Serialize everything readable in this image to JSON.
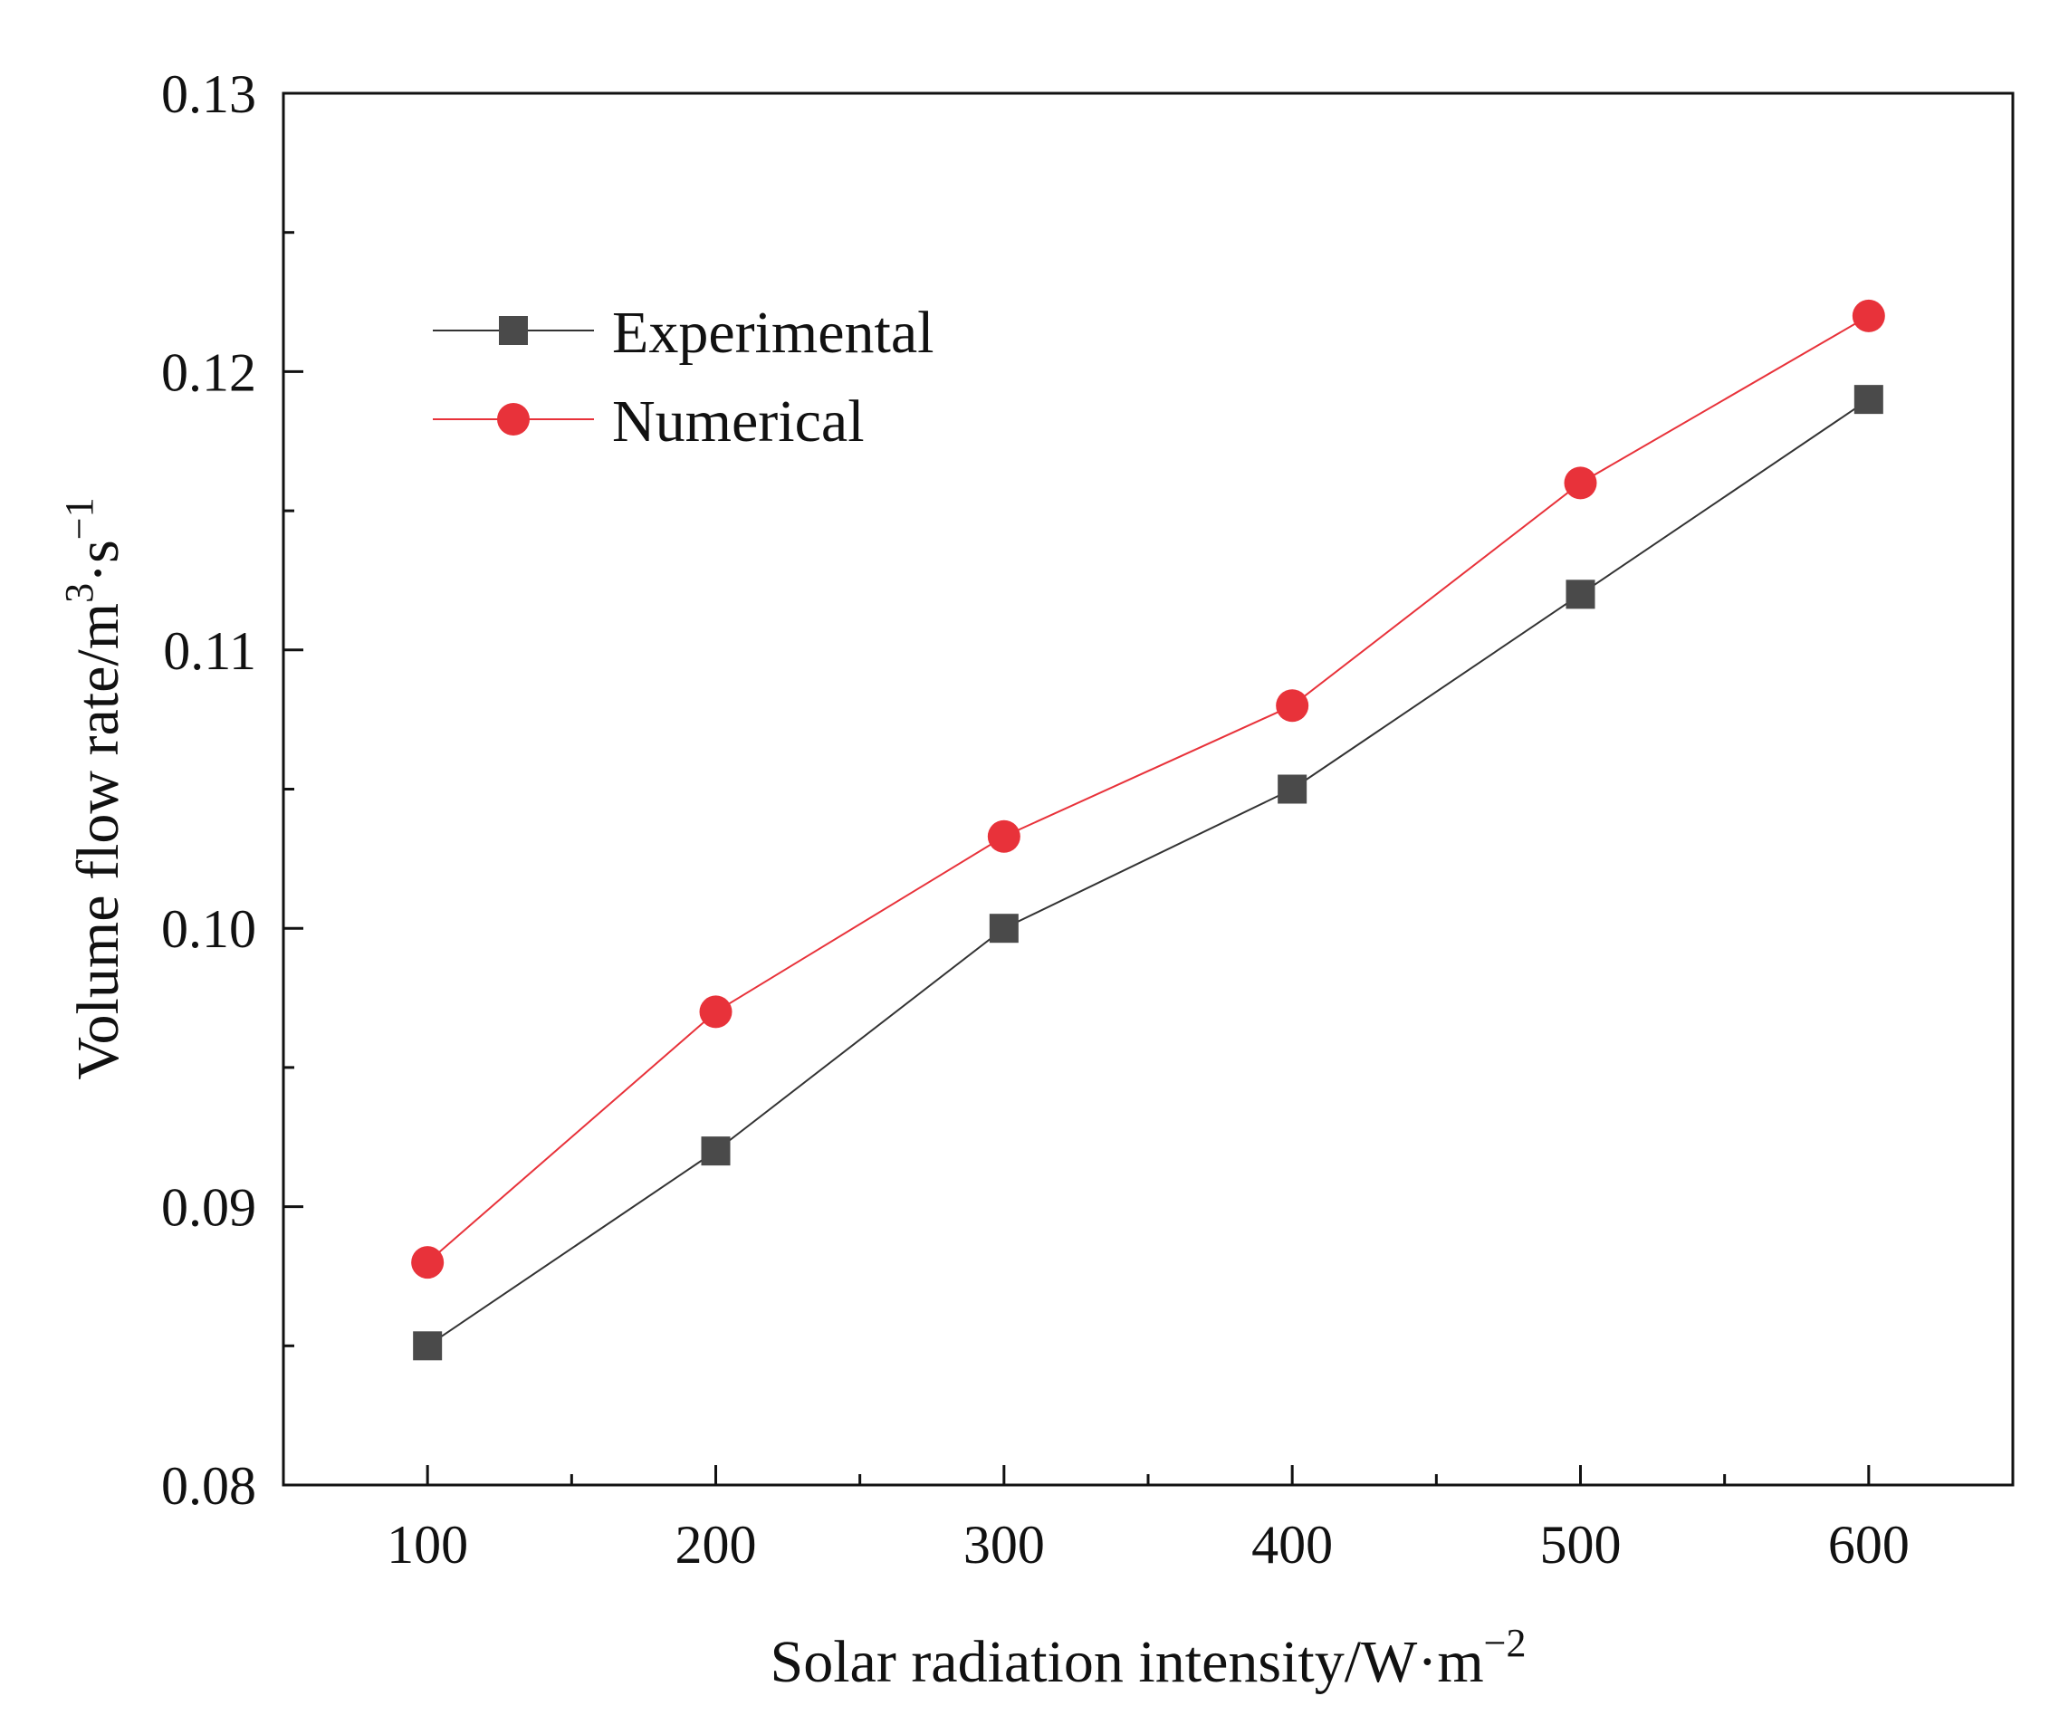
{
  "chart_data": {
    "type": "line",
    "title": "",
    "x": [
      100,
      200,
      300,
      400,
      500,
      600
    ],
    "xlim": [
      50,
      650
    ],
    "ylim": [
      0.08,
      0.13
    ],
    "x_ticks": [
      100,
      200,
      300,
      400,
      500,
      600
    ],
    "x_tick_labels": [
      "100",
      "200",
      "300",
      "400",
      "500",
      "600"
    ],
    "x_minor_ticks": [
      150,
      250,
      350,
      450,
      550
    ],
    "y_ticks": [
      0.08,
      0.09,
      0.1,
      0.11,
      0.12,
      0.13
    ],
    "y_tick_labels": [
      "0.08",
      "0.09",
      "0.10",
      "0.11",
      "0.12",
      "0.13"
    ],
    "y_minor_ticks": [
      0.085,
      0.095,
      0.105,
      0.115,
      0.125
    ],
    "xlabel": {
      "base": "Solar radiation intensity/W·m",
      "sup": "−2"
    },
    "ylabel": {
      "part1": "Volume flow rate/m",
      "sup1": "3",
      "part2": "·s",
      "sup2": "−1"
    },
    "grid": false,
    "legend_position": "upper-left",
    "series": [
      {
        "name": "Experimental",
        "marker": "square",
        "line_color": "#333333",
        "marker_color": "#4a4a4a",
        "values": [
          0.085,
          0.092,
          0.1,
          0.105,
          0.112,
          0.119
        ]
      },
      {
        "name": "Numerical",
        "marker": "circle",
        "line_color": "#e8323a",
        "marker_color": "#e8323a",
        "values": [
          0.088,
          0.097,
          0.1033,
          0.108,
          0.116,
          0.122
        ]
      }
    ]
  }
}
